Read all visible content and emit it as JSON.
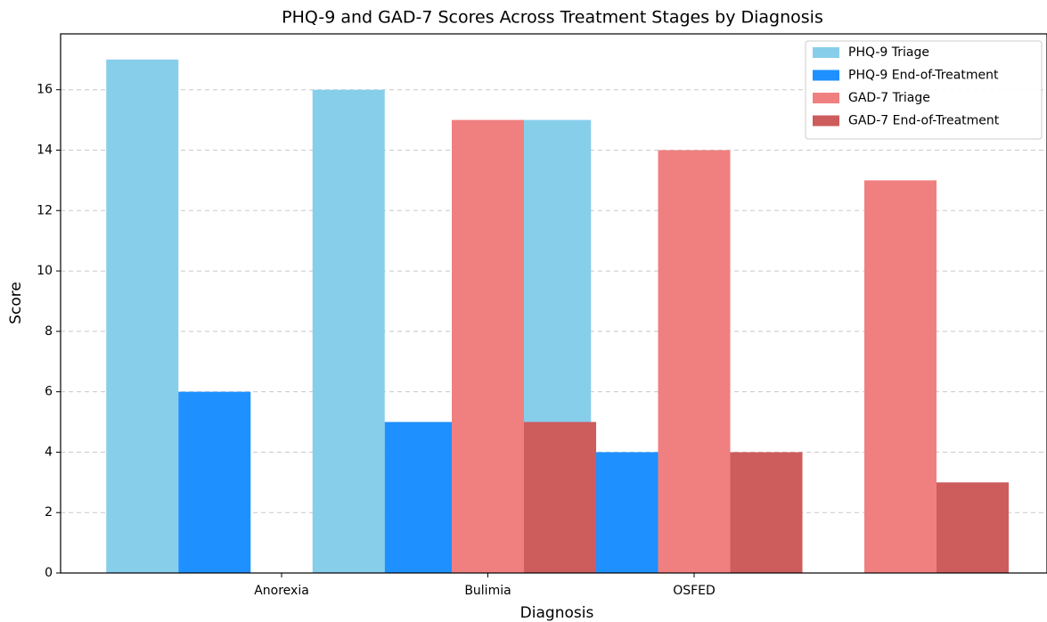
{
  "chart_data": {
    "type": "bar",
    "title": "PHQ-9 and GAD-7 Scores Across Treatment Stages by Diagnosis",
    "x_label": "Diagnosis",
    "y_label": "Score",
    "categories": [
      "Anorexia",
      "Bulimia",
      "OSFED"
    ],
    "series": [
      {
        "name": "PHQ-9 Triage",
        "color": "#87ceeb",
        "values": [
          17,
          16,
          15
        ]
      },
      {
        "name": "PHQ-9 End-of-Treatment",
        "color": "#1e90ff",
        "values": [
          6,
          5,
          4
        ]
      },
      {
        "name": "GAD-7 Triage",
        "color": "#f08080",
        "values": [
          15,
          14,
          13
        ]
      },
      {
        "name": "GAD-7 End-of-Treatment",
        "color": "#cd5c5c",
        "values": [
          5,
          4,
          3
        ]
      }
    ],
    "ylim": [
      0,
      17.85
    ],
    "yticks": [
      0,
      2,
      4,
      6,
      8,
      10,
      12,
      14,
      16
    ],
    "grid": true,
    "legend": "upper right"
  }
}
